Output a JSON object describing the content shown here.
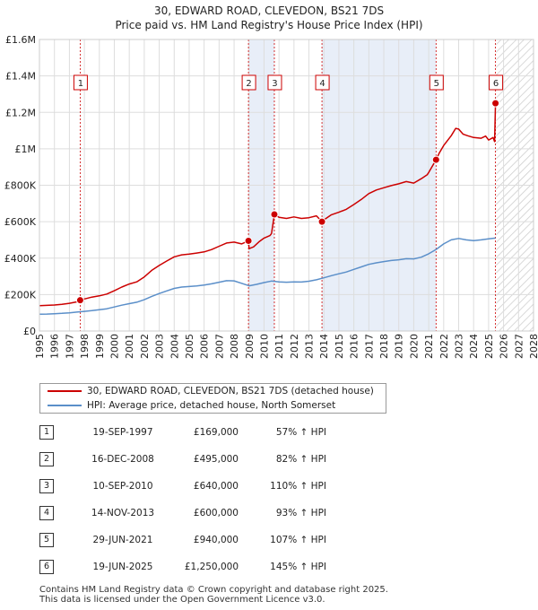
{
  "title_line1": "30, EDWARD ROAD, CLEVEDON, BS21 7DS",
  "title_line2": "Price paid vs. HM Land Registry's House Price Index (HPI)",
  "colors": {
    "property": "#cc0000",
    "hpi": "#5b8fc9",
    "grid": "#dddddd",
    "highlight": "#e8eef8"
  },
  "chart_data": {
    "type": "line",
    "title": "30, EDWARD ROAD, CLEVEDON, BS21 7DS — Price paid vs. HM Land Registry's House Price Index (HPI)",
    "xlabel": "",
    "ylabel": "",
    "xlim": [
      1995,
      2028
    ],
    "ylim": [
      0,
      1600000
    ],
    "grid": true,
    "y_ticks": [
      {
        "value": 0,
        "label": "£0"
      },
      {
        "value": 200000,
        "label": "£200K"
      },
      {
        "value": 400000,
        "label": "£400K"
      },
      {
        "value": 600000,
        "label": "£600K"
      },
      {
        "value": 800000,
        "label": "£800K"
      },
      {
        "value": 1000000,
        "label": "£1M"
      },
      {
        "value": 1200000,
        "label": "£1.2M"
      },
      {
        "value": 1400000,
        "label": "£1.4M"
      },
      {
        "value": 1600000,
        "label": "£1.6M"
      }
    ],
    "x_ticks": [
      "1995",
      "1996",
      "1997",
      "1998",
      "1999",
      "2000",
      "2001",
      "2002",
      "2003",
      "2004",
      "2005",
      "2006",
      "2007",
      "2008",
      "2009",
      "2010",
      "2011",
      "2012",
      "2013",
      "2014",
      "2015",
      "2016",
      "2017",
      "2018",
      "2019",
      "2020",
      "2021",
      "2022",
      "2023",
      "2024",
      "2025",
      "2026",
      "2027",
      "2028"
    ],
    "forecast_from": 2025.5,
    "series": [
      {
        "name": "30, EDWARD ROAD, CLEVEDON, BS21 7DS (detached house)",
        "color": "#cc0000",
        "points": [
          [
            1995.0,
            139000
          ],
          [
            1995.5,
            141000
          ],
          [
            1996.0,
            143000
          ],
          [
            1996.5,
            146000
          ],
          [
            1997.0,
            152000
          ],
          [
            1997.5,
            160000
          ],
          [
            1997.72,
            169000
          ],
          [
            1998.0,
            176000
          ],
          [
            1998.5,
            186000
          ],
          [
            1999.0,
            193000
          ],
          [
            1999.5,
            203000
          ],
          [
            2000.0,
            221000
          ],
          [
            2000.5,
            241000
          ],
          [
            2001.0,
            258000
          ],
          [
            2001.5,
            270000
          ],
          [
            2002.0,
            297000
          ],
          [
            2002.5,
            333000
          ],
          [
            2003.0,
            360000
          ],
          [
            2003.5,
            384000
          ],
          [
            2004.0,
            407000
          ],
          [
            2004.5,
            418000
          ],
          [
            2005.0,
            422000
          ],
          [
            2005.5,
            428000
          ],
          [
            2006.0,
            434000
          ],
          [
            2006.5,
            447000
          ],
          [
            2007.0,
            465000
          ],
          [
            2007.5,
            483000
          ],
          [
            2008.0,
            488000
          ],
          [
            2008.5,
            478000
          ],
          [
            2008.96,
            495000
          ],
          [
            2009.0,
            452000
          ],
          [
            2009.3,
            462000
          ],
          [
            2009.7,
            492000
          ],
          [
            2010.0,
            510000
          ],
          [
            2010.4,
            524000
          ],
          [
            2010.5,
            535000
          ],
          [
            2010.69,
            640000
          ],
          [
            2011.0,
            624000
          ],
          [
            2011.5,
            618000
          ],
          [
            2012.0,
            626000
          ],
          [
            2012.5,
            618000
          ],
          [
            2013.0,
            622000
          ],
          [
            2013.5,
            632000
          ],
          [
            2013.87,
            600000
          ],
          [
            2014.0,
            610000
          ],
          [
            2014.5,
            638000
          ],
          [
            2015.0,
            652000
          ],
          [
            2015.5,
            668000
          ],
          [
            2016.0,
            694000
          ],
          [
            2016.5,
            722000
          ],
          [
            2017.0,
            754000
          ],
          [
            2017.5,
            774000
          ],
          [
            2018.0,
            786000
          ],
          [
            2018.5,
            798000
          ],
          [
            2019.0,
            808000
          ],
          [
            2019.5,
            820000
          ],
          [
            2020.0,
            812000
          ],
          [
            2020.5,
            836000
          ],
          [
            2020.9,
            858000
          ],
          [
            2021.0,
            870000
          ],
          [
            2021.49,
            940000
          ],
          [
            2021.7,
            976000
          ],
          [
            2022.0,
            1018000
          ],
          [
            2022.5,
            1072000
          ],
          [
            2022.8,
            1112000
          ],
          [
            2023.0,
            1108000
          ],
          [
            2023.3,
            1080000
          ],
          [
            2023.6,
            1072000
          ],
          [
            2024.0,
            1062000
          ],
          [
            2024.5,
            1058000
          ],
          [
            2024.8,
            1070000
          ],
          [
            2025.0,
            1048000
          ],
          [
            2025.3,
            1062000
          ],
          [
            2025.4,
            1040000
          ],
          [
            2025.46,
            1250000
          ]
        ]
      },
      {
        "name": "HPI: Average price, detached house, North Somerset",
        "color": "#5b8fc9",
        "points": [
          [
            1995.0,
            92000
          ],
          [
            1995.5,
            93000
          ],
          [
            1996.0,
            95000
          ],
          [
            1996.5,
            97000
          ],
          [
            1997.0,
            100000
          ],
          [
            1997.5,
            104000
          ],
          [
            1998.0,
            108000
          ],
          [
            1998.5,
            112000
          ],
          [
            1999.0,
            117000
          ],
          [
            1999.5,
            122000
          ],
          [
            2000.0,
            132000
          ],
          [
            2000.5,
            142000
          ],
          [
            2001.0,
            150000
          ],
          [
            2001.5,
            158000
          ],
          [
            2002.0,
            172000
          ],
          [
            2002.5,
            190000
          ],
          [
            2003.0,
            206000
          ],
          [
            2003.5,
            220000
          ],
          [
            2004.0,
            234000
          ],
          [
            2004.5,
            241000
          ],
          [
            2005.0,
            244000
          ],
          [
            2005.5,
            247000
          ],
          [
            2006.0,
            252000
          ],
          [
            2006.5,
            259000
          ],
          [
            2007.0,
            268000
          ],
          [
            2007.5,
            276000
          ],
          [
            2008.0,
            275000
          ],
          [
            2008.5,
            262000
          ],
          [
            2009.0,
            248000
          ],
          [
            2009.5,
            256000
          ],
          [
            2010.0,
            266000
          ],
          [
            2010.5,
            274000
          ],
          [
            2011.0,
            270000
          ],
          [
            2011.5,
            268000
          ],
          [
            2012.0,
            270000
          ],
          [
            2012.5,
            269000
          ],
          [
            2013.0,
            273000
          ],
          [
            2013.5,
            281000
          ],
          [
            2014.0,
            292000
          ],
          [
            2014.5,
            304000
          ],
          [
            2015.0,
            314000
          ],
          [
            2015.5,
            324000
          ],
          [
            2016.0,
            338000
          ],
          [
            2016.5,
            352000
          ],
          [
            2017.0,
            366000
          ],
          [
            2017.5,
            374000
          ],
          [
            2018.0,
            381000
          ],
          [
            2018.5,
            387000
          ],
          [
            2019.0,
            391000
          ],
          [
            2019.5,
            397000
          ],
          [
            2020.0,
            396000
          ],
          [
            2020.5,
            405000
          ],
          [
            2021.0,
            424000
          ],
          [
            2021.5,
            448000
          ],
          [
            2022.0,
            478000
          ],
          [
            2022.5,
            500000
          ],
          [
            2023.0,
            508000
          ],
          [
            2023.5,
            500000
          ],
          [
            2024.0,
            496000
          ],
          [
            2024.5,
            500000
          ],
          [
            2025.0,
            506000
          ],
          [
            2025.46,
            510000
          ]
        ]
      }
    ],
    "sales": [
      {
        "n": "1",
        "x": 1997.72,
        "price": 169000
      },
      {
        "n": "2",
        "x": 2008.96,
        "price": 495000
      },
      {
        "n": "3",
        "x": 2010.69,
        "price": 640000
      },
      {
        "n": "4",
        "x": 2013.87,
        "price": 600000
      },
      {
        "n": "5",
        "x": 2021.49,
        "price": 940000
      },
      {
        "n": "6",
        "x": 2025.46,
        "price": 1250000
      }
    ],
    "highlight_ranges": [
      [
        2008.96,
        2010.69
      ],
      [
        2013.87,
        2021.49
      ]
    ]
  },
  "legend": {
    "property_label": "30, EDWARD ROAD, CLEVEDON, BS21 7DS (detached house)",
    "hpi_label": "HPI: Average price, detached house, North Somerset"
  },
  "sales_table": [
    {
      "n": "1",
      "date": "19-SEP-1997",
      "price": "£169,000",
      "hpi": "57% ↑ HPI"
    },
    {
      "n": "2",
      "date": "16-DEC-2008",
      "price": "£495,000",
      "hpi": "82% ↑ HPI"
    },
    {
      "n": "3",
      "date": "10-SEP-2010",
      "price": "£640,000",
      "hpi": "110% ↑ HPI"
    },
    {
      "n": "4",
      "date": "14-NOV-2013",
      "price": "£600,000",
      "hpi": "93% ↑ HPI"
    },
    {
      "n": "5",
      "date": "29-JUN-2021",
      "price": "£940,000",
      "hpi": "107% ↑ HPI"
    },
    {
      "n": "6",
      "date": "19-JUN-2025",
      "price": "£1,250,000",
      "hpi": "145% ↑ HPI"
    }
  ],
  "footer": {
    "line1": "Contains HM Land Registry data © Crown copyright and database right 2025.",
    "line2": "This data is licensed under the Open Government Licence v3.0."
  }
}
